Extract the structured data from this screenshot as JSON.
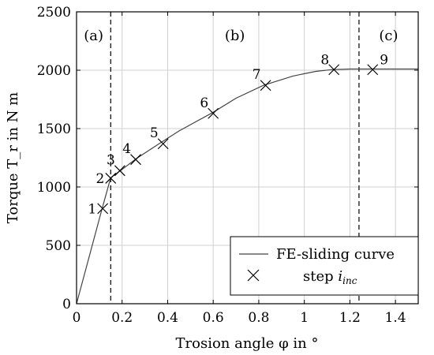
{
  "chart_data": {
    "type": "line",
    "xlabel": "Trosion angle φ in °",
    "ylabel": "Torque T_r in N m",
    "xlim": [
      0,
      1.5
    ],
    "ylim": [
      0,
      2500
    ],
    "x_ticks": [
      "0",
      "0.2",
      "0.4",
      "0.6",
      "0.8",
      "1",
      "1.2",
      "1.4"
    ],
    "y_ticks": [
      "0",
      "500",
      "1000",
      "1500",
      "2000",
      "2500"
    ],
    "grid": true,
    "legend_position": "bottom-right",
    "regions": {
      "labels": [
        "(a)",
        "(b)",
        "(c)"
      ],
      "boundaries": [
        0.15,
        1.24
      ]
    },
    "series": [
      {
        "name": "FE-sliding curve",
        "style": "line",
        "color": "#444444",
        "x": [
          0,
          0.11,
          0.15,
          0.2,
          0.26,
          0.37,
          0.45,
          0.6,
          0.7,
          0.82,
          0.95,
          1.05,
          1.12,
          1.2,
          1.3,
          1.5
        ],
        "y": [
          0,
          800,
          1080,
          1150,
          1240,
          1380,
          1480,
          1640,
          1760,
          1870,
          1950,
          1990,
          2005,
          2010,
          2010,
          2010
        ]
      },
      {
        "name": "step i_inc",
        "style": "marker-x",
        "color": "#000000",
        "labels": [
          "1",
          "2",
          "3",
          "4",
          "5",
          "6",
          "7",
          "8",
          "9"
        ],
        "x": [
          0.115,
          0.15,
          0.19,
          0.26,
          0.38,
          0.6,
          0.83,
          1.13,
          1.3
        ],
        "y": [
          815,
          1075,
          1140,
          1235,
          1370,
          1630,
          1870,
          2005,
          2005
        ]
      }
    ]
  }
}
